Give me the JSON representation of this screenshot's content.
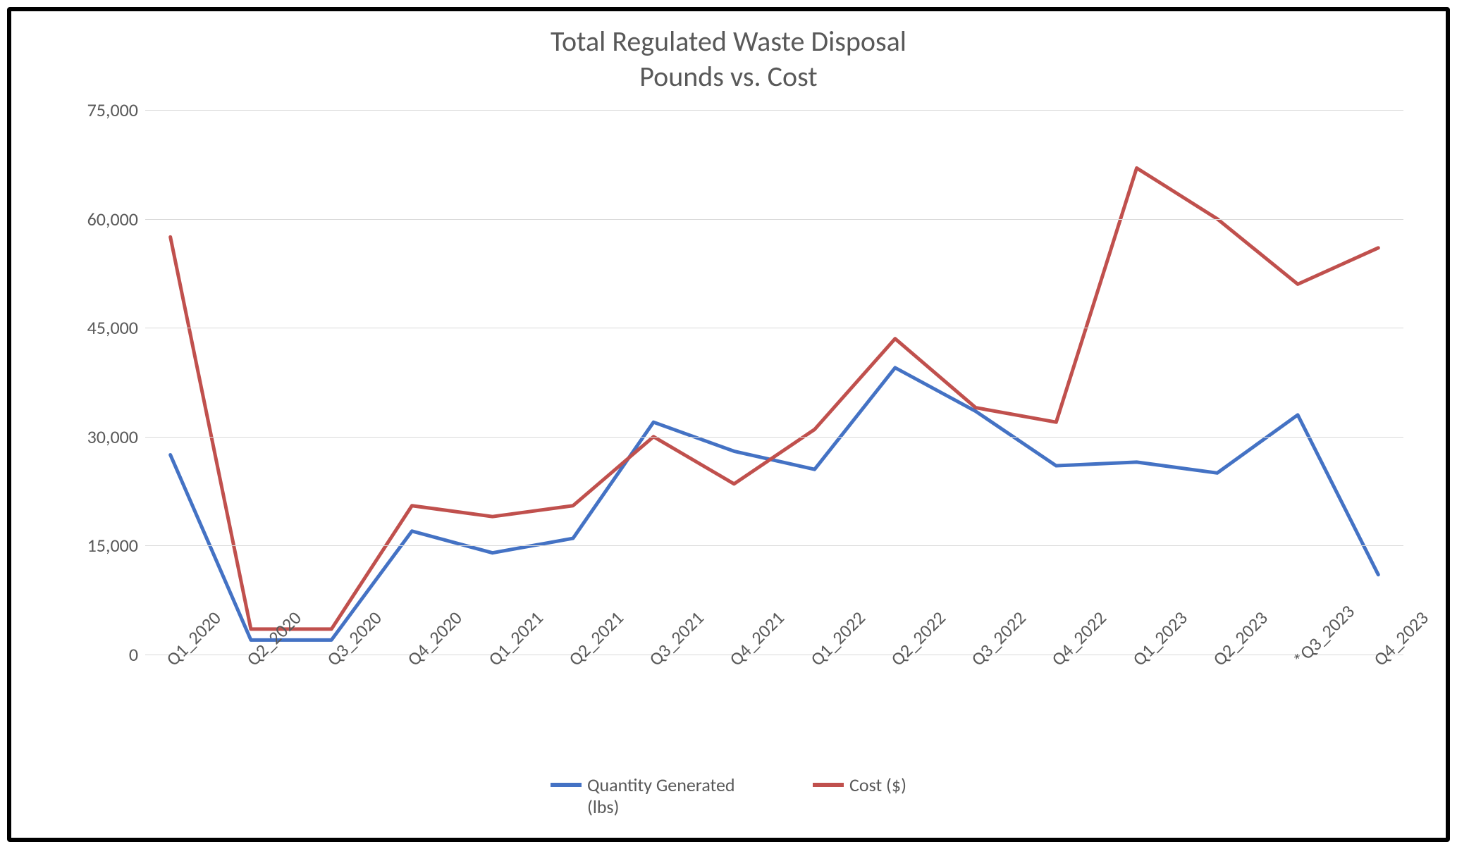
{
  "chart": {
    "type": "line",
    "title_line1": "Total Regulated Waste Disposal",
    "title_line2": "Pounds vs. Cost",
    "title_fontsize": 40,
    "title_color": "#595959",
    "background_color": "#ffffff",
    "border_color": "#000000",
    "border_width": 6,
    "grid_color": "#d9d9d9",
    "axis_label_color": "#595959",
    "axis_label_fontsize": 26,
    "x_categories": [
      "Q1_2020",
      "Q2_2020",
      "Q3_2020",
      "Q4_2020",
      "Q1_2021",
      "Q2_2021",
      "Q3_2021",
      "Q4_2021",
      "Q1_2022",
      "Q2_2022",
      "Q3_2022",
      "Q4_2022",
      "Q1_2023",
      "Q2_2023",
      "*Q3_2023",
      "Q4_2023"
    ],
    "x_label_rotation_deg": -45,
    "y": {
      "min": 0,
      "max": 75000,
      "tick_step": 15000,
      "tick_labels": [
        "0",
        "15,000",
        "30,000",
        "45,000",
        "60,000",
        "75,000"
      ]
    },
    "series": [
      {
        "id": "quantity",
        "label": "Quantity Generated (lbs)",
        "color": "#4472c4",
        "line_width": 5,
        "values": [
          27500,
          2000,
          2000,
          17000,
          14000,
          16000,
          32000,
          28000,
          25500,
          39500,
          33500,
          26000,
          26500,
          25000,
          33000,
          11000
        ]
      },
      {
        "id": "cost",
        "label": "Cost ($)",
        "color": "#c0504d",
        "line_width": 5,
        "values": [
          57500,
          3500,
          3500,
          20500,
          19000,
          20500,
          30000,
          23500,
          31000,
          43500,
          34000,
          32000,
          67000,
          60000,
          51000,
          56000
        ]
      }
    ],
    "legend": {
      "position": "bottom-center",
      "fontsize": 26,
      "text_color": "#595959"
    }
  }
}
